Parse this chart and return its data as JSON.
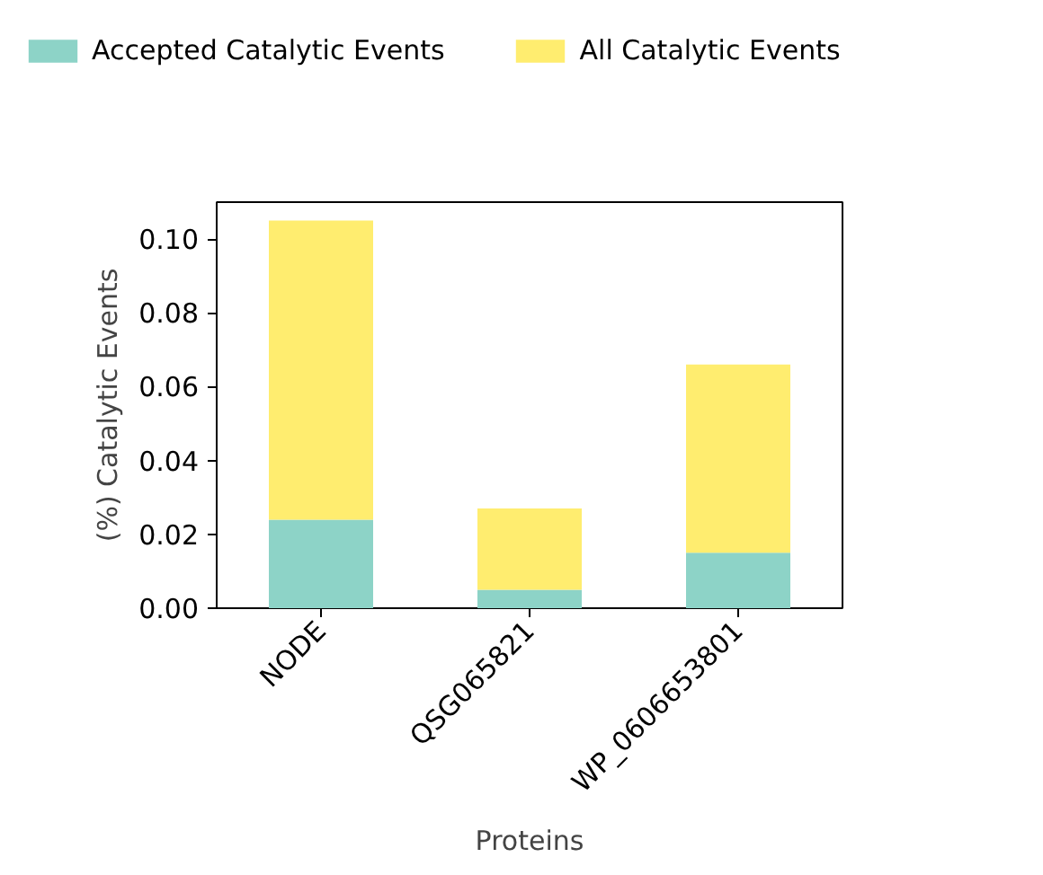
{
  "chart_data": {
    "type": "bar",
    "stacked": true,
    "xlabel": "Proteins",
    "ylabel": "(%) Catalytic Events",
    "categories": [
      "NODE",
      "QSG065821",
      "WP_0606653801"
    ],
    "series": [
      {
        "name": "Accepted Catalytic Events",
        "color": "#8dd3c7",
        "values": [
          0.024,
          0.005,
          0.015
        ]
      },
      {
        "name": "All Catalytic Events",
        "color": "#ffed6f",
        "values": [
          0.081,
          0.022,
          0.051
        ]
      }
    ],
    "ylim": [
      0,
      0.11
    ],
    "yticks": [
      {
        "value": 0,
        "label": "0.00"
      },
      {
        "value": 0.02,
        "label": "0.02"
      },
      {
        "value": 0.04,
        "label": "0.04"
      },
      {
        "value": 0.06,
        "label": "0.06"
      },
      {
        "value": 0.08,
        "label": "0.08"
      },
      {
        "value": 0.1,
        "label": "0.10"
      }
    ],
    "grid": false,
    "legend": "top"
  }
}
